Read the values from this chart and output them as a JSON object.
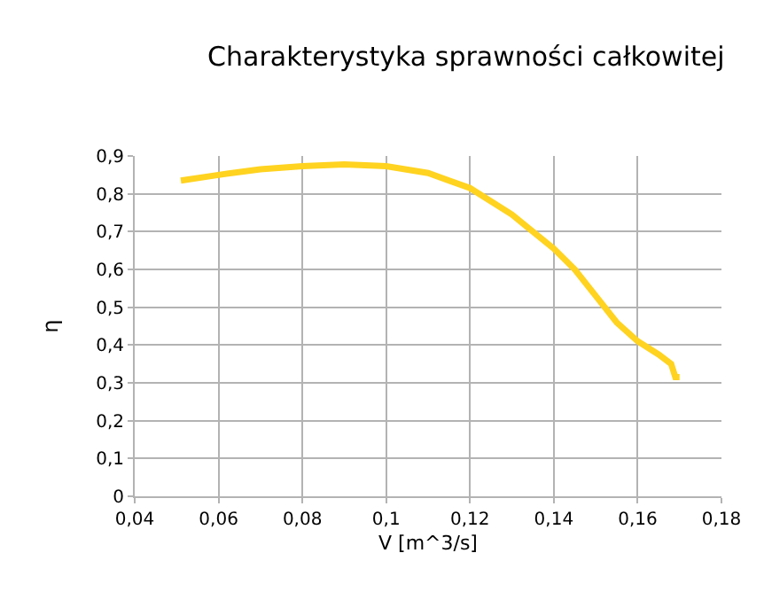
{
  "chart_data": {
    "type": "line",
    "title": "Charakterystyka sprawności całkowitej",
    "xlabel": "V [m^3/s]",
    "ylabel": "η",
    "x": [
      0.051,
      0.06,
      0.07,
      0.08,
      0.09,
      0.1,
      0.11,
      0.12,
      0.13,
      0.14,
      0.145,
      0.15,
      0.155,
      0.16,
      0.165,
      0.168,
      0.169,
      0.17
    ],
    "series": [
      {
        "color": "#ffd320",
        "values": [
          0.835,
          0.85,
          0.865,
          0.873,
          0.878,
          0.873,
          0.855,
          0.815,
          0.745,
          0.655,
          0.6,
          0.53,
          0.46,
          0.41,
          0.375,
          0.35,
          0.315,
          0.315
        ]
      }
    ],
    "xlim": [
      0.04,
      0.18
    ],
    "xticks": [
      {
        "value": 0.04,
        "label": "0,04"
      },
      {
        "value": 0.06,
        "label": "0,06"
      },
      {
        "value": 0.08,
        "label": "0,08"
      },
      {
        "value": 0.1,
        "label": "0,1"
      },
      {
        "value": 0.12,
        "label": "0,12"
      },
      {
        "value": 0.14,
        "label": "0,14"
      },
      {
        "value": 0.16,
        "label": "0,16"
      },
      {
        "value": 0.18,
        "label": "0,18"
      }
    ],
    "ylim": [
      0,
      0.9
    ],
    "yticks": [
      0,
      {
        "value": 0.1,
        "label": "0,1"
      },
      {
        "value": 0.2,
        "label": "0,2"
      },
      {
        "value": 0.3,
        "label": "0,3"
      },
      {
        "value": 0.4,
        "label": "0,4"
      },
      {
        "value": 0.5,
        "label": "0,5"
      },
      {
        "value": 0.6,
        "label": "0,6"
      },
      {
        "value": 0.7,
        "label": "0,7"
      },
      {
        "value": 0.8,
        "label": "0,8"
      },
      {
        "value": 0.9,
        "label": "0,9"
      }
    ],
    "grid": true,
    "line_style": "solid"
  }
}
